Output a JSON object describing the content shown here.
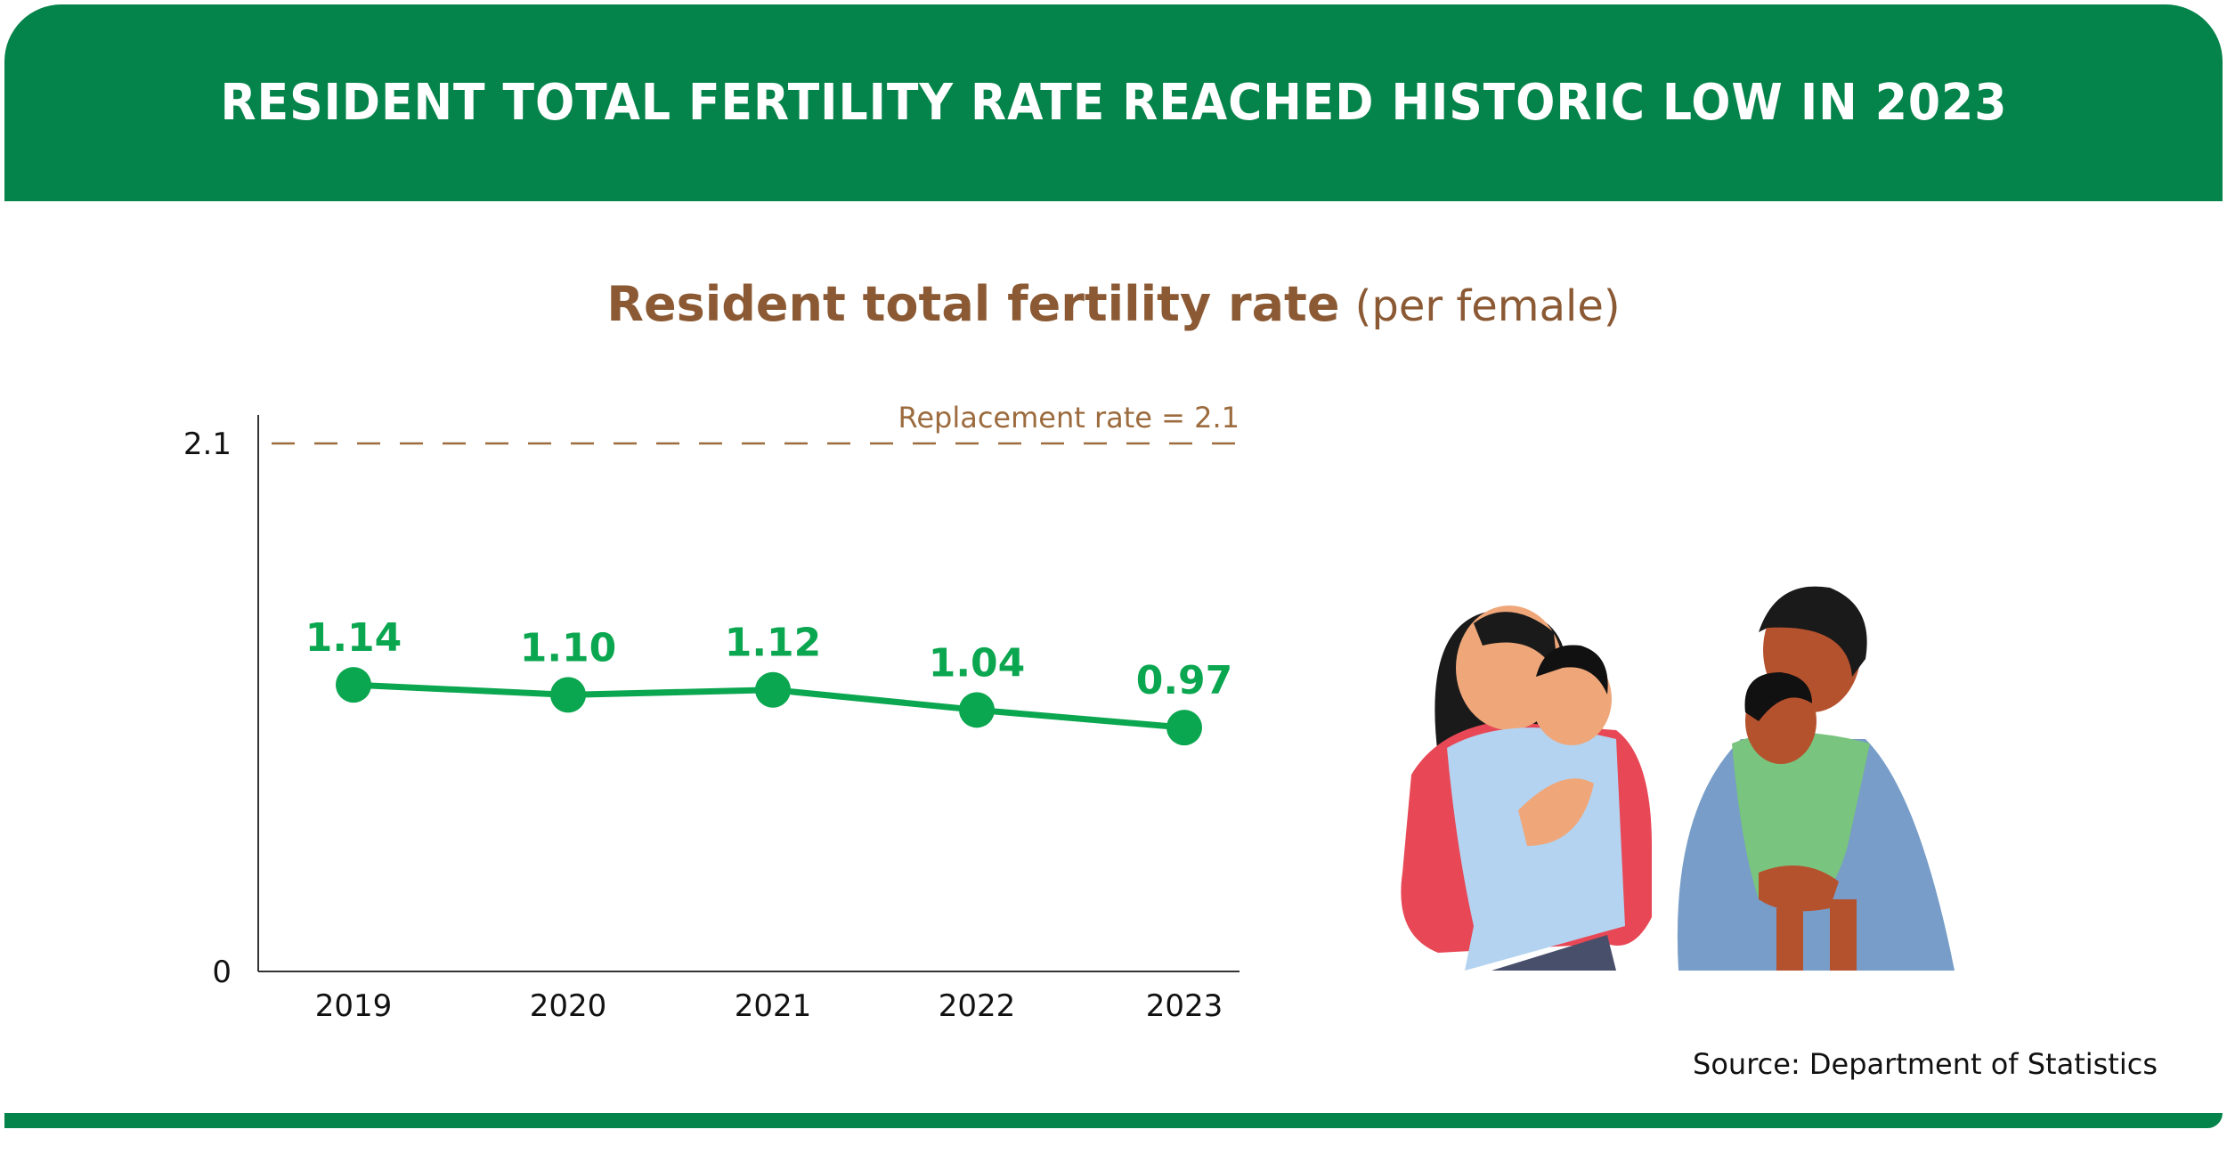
{
  "header": {
    "title": "RESIDENT TOTAL FERTILITY RATE REACHED HISTORIC LOW IN 2023"
  },
  "source": "Source: Department of Statistics",
  "colors": {
    "header_green": "#04834a",
    "line_green": "#0ba650",
    "title_brown": "#8b5a34",
    "reference_brown": "#9c6b3e"
  },
  "chart_data": {
    "type": "line",
    "title": "Resident total fertility rate",
    "title_unit": "(per female)",
    "categories": [
      "2019",
      "2020",
      "2021",
      "2022",
      "2023"
    ],
    "values": [
      1.14,
      1.1,
      1.12,
      1.04,
      0.97
    ],
    "data_labels": [
      "1.14",
      "1.10",
      "1.12",
      "1.04",
      "0.97"
    ],
    "ylim": [
      0,
      2.1
    ],
    "yticks": [
      "0",
      "2.1"
    ],
    "grid": false,
    "reference_line": {
      "value": 2.1,
      "label": "Replacement rate = 2.1",
      "style": "dashed"
    }
  }
}
